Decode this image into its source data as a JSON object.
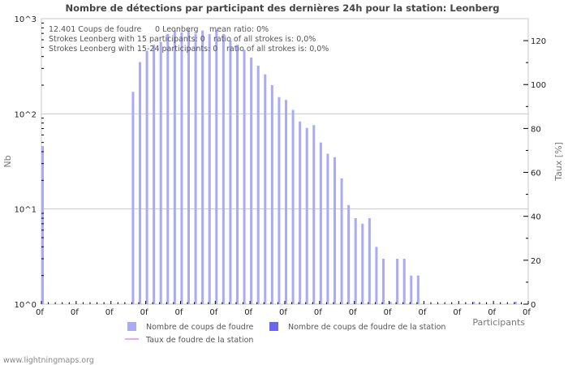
{
  "title": "Nombre de détections par participant des dernières 24h pour la station: Leonberg",
  "info_lines": [
    {
      "a": "12.401  Coups de foudre",
      "b": "0 Leonberg",
      "c": "mean ratio: 0%"
    },
    {
      "a": "Strokes Leonberg with 15 participants: 0",
      "c": "ratio of all strokes is: 0,0%"
    },
    {
      "a": "Strokes Leonberg with 15-24 participants: 0",
      "c": "ratio of all strokes is: 0,0%"
    }
  ],
  "y_left": {
    "title": "Nb",
    "ticks": [
      "10^0",
      "10^1",
      "10^2",
      "10^3"
    ]
  },
  "y_right": {
    "title": "Taux [%]",
    "ticks": [
      "0",
      "20",
      "40",
      "60",
      "80",
      "100",
      "120"
    ]
  },
  "x_axis": {
    "title": "Participants",
    "tick_label": "0f",
    "tick_count": 15
  },
  "legend": [
    {
      "label": "Nombre de coups de foudre",
      "color": "#aaaaf5",
      "kind": "box"
    },
    {
      "label": "Nombre de coups de foudre de la station",
      "color": "#6666ee",
      "kind": "box"
    },
    {
      "label": "Taux de foudre de la station",
      "color": "#ee88ee",
      "kind": "line"
    }
  ],
  "footer": "www.lightningmaps.org",
  "colors": {
    "bar": "#aaaaf5",
    "grid": "#c8c8c8",
    "axis": "#c8c8c8",
    "tick": "#000000"
  },
  "chart_data": {
    "type": "bar",
    "title": "Nombre de détections par participant des dernières 24h pour la station: Leonberg",
    "xlabel": "Participants",
    "ylabel": "Nb",
    "y2label": "Taux [%]",
    "yscale": "log",
    "ylim": [
      1,
      1000
    ],
    "y2lim": [
      0,
      130
    ],
    "grid": true,
    "legend_position": "bottom",
    "slot_count": 70,
    "series": [
      {
        "name": "Nombre de coups de foudre",
        "slots": [
          0,
          13,
          14,
          15,
          16,
          17,
          18,
          19,
          20,
          21,
          22,
          23,
          24,
          25,
          26,
          27,
          28,
          29,
          30,
          31,
          32,
          33,
          34,
          35,
          36,
          37,
          38,
          39,
          40,
          41,
          42,
          43,
          44,
          45,
          46,
          47,
          48,
          49,
          50,
          51,
          52,
          53,
          54,
          62,
          68
        ],
        "values": [
          46,
          170,
          350,
          460,
          530,
          570,
          690,
          750,
          720,
          770,
          690,
          750,
          690,
          760,
          690,
          590,
          530,
          470,
          390,
          320,
          260,
          200,
          150,
          140,
          110,
          83,
          71,
          76,
          50,
          38,
          35,
          21,
          11,
          8,
          7,
          8,
          4,
          3,
          1,
          3,
          3,
          2,
          2,
          1,
          1
        ]
      },
      {
        "name": "Nombre de coups de foudre de la station",
        "values": []
      },
      {
        "name": "Taux de foudre de la station",
        "values": []
      }
    ]
  }
}
